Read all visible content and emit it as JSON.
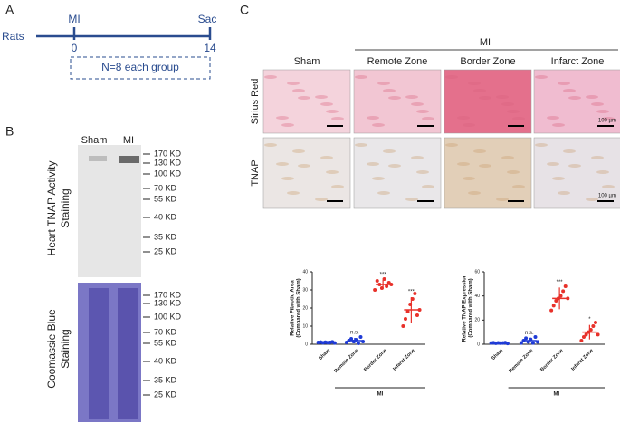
{
  "panels": {
    "a": "A",
    "b": "B",
    "c": "C"
  },
  "timeline": {
    "axis_label": "Rats",
    "start_label": "MI",
    "end_label": "Sac",
    "ticks": [
      0,
      14
    ],
    "note": "N=8 each group"
  },
  "blot": {
    "lanes": [
      "Sham",
      "MI"
    ],
    "markers": [
      "170 KD",
      "130 KD",
      "100 KD",
      "70 KD",
      "55 KD",
      "40 KD",
      "35 KD",
      "25 KD"
    ],
    "labels": [
      [
        "Heart TNAP Activity",
        "Staining"
      ],
      [
        "Coomassie Blue",
        "Staining"
      ]
    ]
  },
  "histology": {
    "group_label": "MI",
    "columns": [
      "Sham",
      "Remote Zone",
      "Border Zone",
      "Infarct Zone"
    ],
    "rows": [
      "Sirius Red",
      "TNAP"
    ],
    "scale_bar": "100 µm"
  },
  "chart_data": [
    {
      "type": "dot",
      "y_label": [
        "Relative Fibrotic Area",
        "(Compared with Sham)"
      ],
      "categories": [
        "Sham",
        "Remote Zone",
        "Border Zone",
        "Infarct Zone"
      ],
      "group_label": "MI",
      "colors": [
        "#1f3bd6",
        "#1f3bd6",
        "#e8312a",
        "#e8312a"
      ],
      "values": [
        1,
        2,
        33,
        19
      ],
      "errors": [
        0.5,
        1.5,
        2.5,
        7
      ],
      "points": [
        [
          1,
          1.2,
          0.8,
          1.1,
          0.9,
          1,
          1.3,
          0.7
        ],
        [
          1,
          2,
          3,
          1.5,
          2.5,
          0.5,
          4,
          1.5
        ],
        [
          30,
          35,
          33,
          31,
          36,
          32,
          34,
          33
        ],
        [
          10,
          14,
          18,
          22,
          25,
          28,
          16,
          19
        ]
      ],
      "annotations": [
        null,
        "n.s.",
        "***",
        "***"
      ],
      "ylim": [
        0,
        40
      ],
      "yticks": [
        0,
        10,
        20,
        30,
        40
      ]
    },
    {
      "type": "dot",
      "y_label": [
        "Relative TNAP Expression",
        "(Compared with Sham)"
      ],
      "categories": [
        "Sham",
        "Remote Zone",
        "Border Zone",
        "Infarct Zone"
      ],
      "group_label": "MI",
      "colors": [
        "#1f3bd6",
        "#1f3bd6",
        "#e8312a",
        "#e8312a"
      ],
      "values": [
        1,
        3,
        38,
        10
      ],
      "errors": [
        0.5,
        2,
        9,
        6
      ],
      "points": [
        [
          1,
          1.2,
          0.8,
          1.1,
          0.9,
          1,
          1.3,
          0.7
        ],
        [
          1,
          3,
          5,
          2,
          4,
          1,
          6,
          2
        ],
        [
          28,
          32,
          36,
          38,
          40,
          44,
          48,
          38
        ],
        [
          3,
          6,
          8,
          10,
          12,
          15,
          18,
          8
        ]
      ],
      "annotations": [
        null,
        "n.s.",
        "***",
        "*"
      ],
      "ylim": [
        0,
        60
      ],
      "yticks": [
        0,
        20,
        40,
        60
      ]
    }
  ]
}
